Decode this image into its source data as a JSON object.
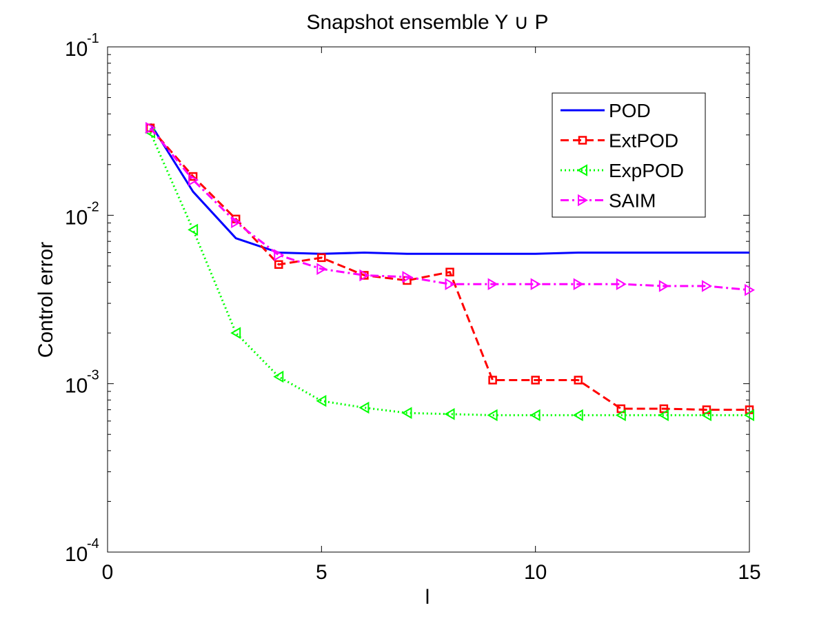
{
  "chart_data": {
    "type": "line",
    "title": "Snapshot ensemble Y ∪ P",
    "xlabel": "l",
    "ylabel": "Control error",
    "xlim": [
      0,
      15
    ],
    "ylim": [
      0.0001,
      0.1
    ],
    "yscale": "log",
    "xticks": [
      0,
      5,
      10,
      15
    ],
    "yticks": [
      {
        "base": "10",
        "exp": "-4",
        "value": 0.0001
      },
      {
        "base": "10",
        "exp": "-3",
        "value": 0.001
      },
      {
        "base": "10",
        "exp": "-2",
        "value": 0.01
      },
      {
        "base": "10",
        "exp": "-1",
        "value": 0.1
      }
    ],
    "legend_position": "top-right",
    "series": [
      {
        "name": "POD",
        "color": "#0000ff",
        "dash": "",
        "marker": "none",
        "x": [
          1,
          2,
          3,
          4,
          5,
          6,
          7,
          8,
          9,
          10,
          11,
          12,
          13,
          14,
          15
        ],
        "values": [
          0.035,
          0.0138,
          0.0073,
          0.006,
          0.0059,
          0.006,
          0.0059,
          0.0059,
          0.0059,
          0.0059,
          0.006,
          0.006,
          0.006,
          0.006,
          0.006
        ]
      },
      {
        "name": "ExtPOD",
        "color": "#ff0000",
        "dash": "12,6",
        "marker": "square",
        "x": [
          1,
          2,
          3,
          4,
          5,
          6,
          7,
          8,
          9,
          10,
          11,
          12,
          13,
          14,
          15
        ],
        "values": [
          0.033,
          0.017,
          0.0095,
          0.0051,
          0.0056,
          0.0044,
          0.0041,
          0.0046,
          0.00105,
          0.00105,
          0.00105,
          0.00071,
          0.00071,
          0.0007,
          0.0007
        ]
      },
      {
        "name": "ExpPOD",
        "color": "#00ff00",
        "dash": "2,4",
        "marker": "triangle-left",
        "x": [
          1,
          2,
          3,
          4,
          5,
          6,
          7,
          8,
          9,
          10,
          11,
          12,
          13,
          14,
          15
        ],
        "values": [
          0.031,
          0.0082,
          0.002,
          0.0011,
          0.00079,
          0.00072,
          0.00067,
          0.00066,
          0.00065,
          0.00065,
          0.00065,
          0.00065,
          0.00065,
          0.00065,
          0.00065
        ]
      },
      {
        "name": "SAIM",
        "color": "#ff00ff",
        "dash": "12,5,3,5",
        "marker": "triangle-right",
        "x": [
          1,
          2,
          3,
          4,
          5,
          6,
          7,
          8,
          9,
          10,
          11,
          12,
          13,
          14,
          15
        ],
        "values": [
          0.033,
          0.0162,
          0.0091,
          0.0058,
          0.0048,
          0.0044,
          0.0043,
          0.0039,
          0.0039,
          0.0039,
          0.0039,
          0.0039,
          0.0038,
          0.0038,
          0.0036
        ]
      }
    ]
  }
}
